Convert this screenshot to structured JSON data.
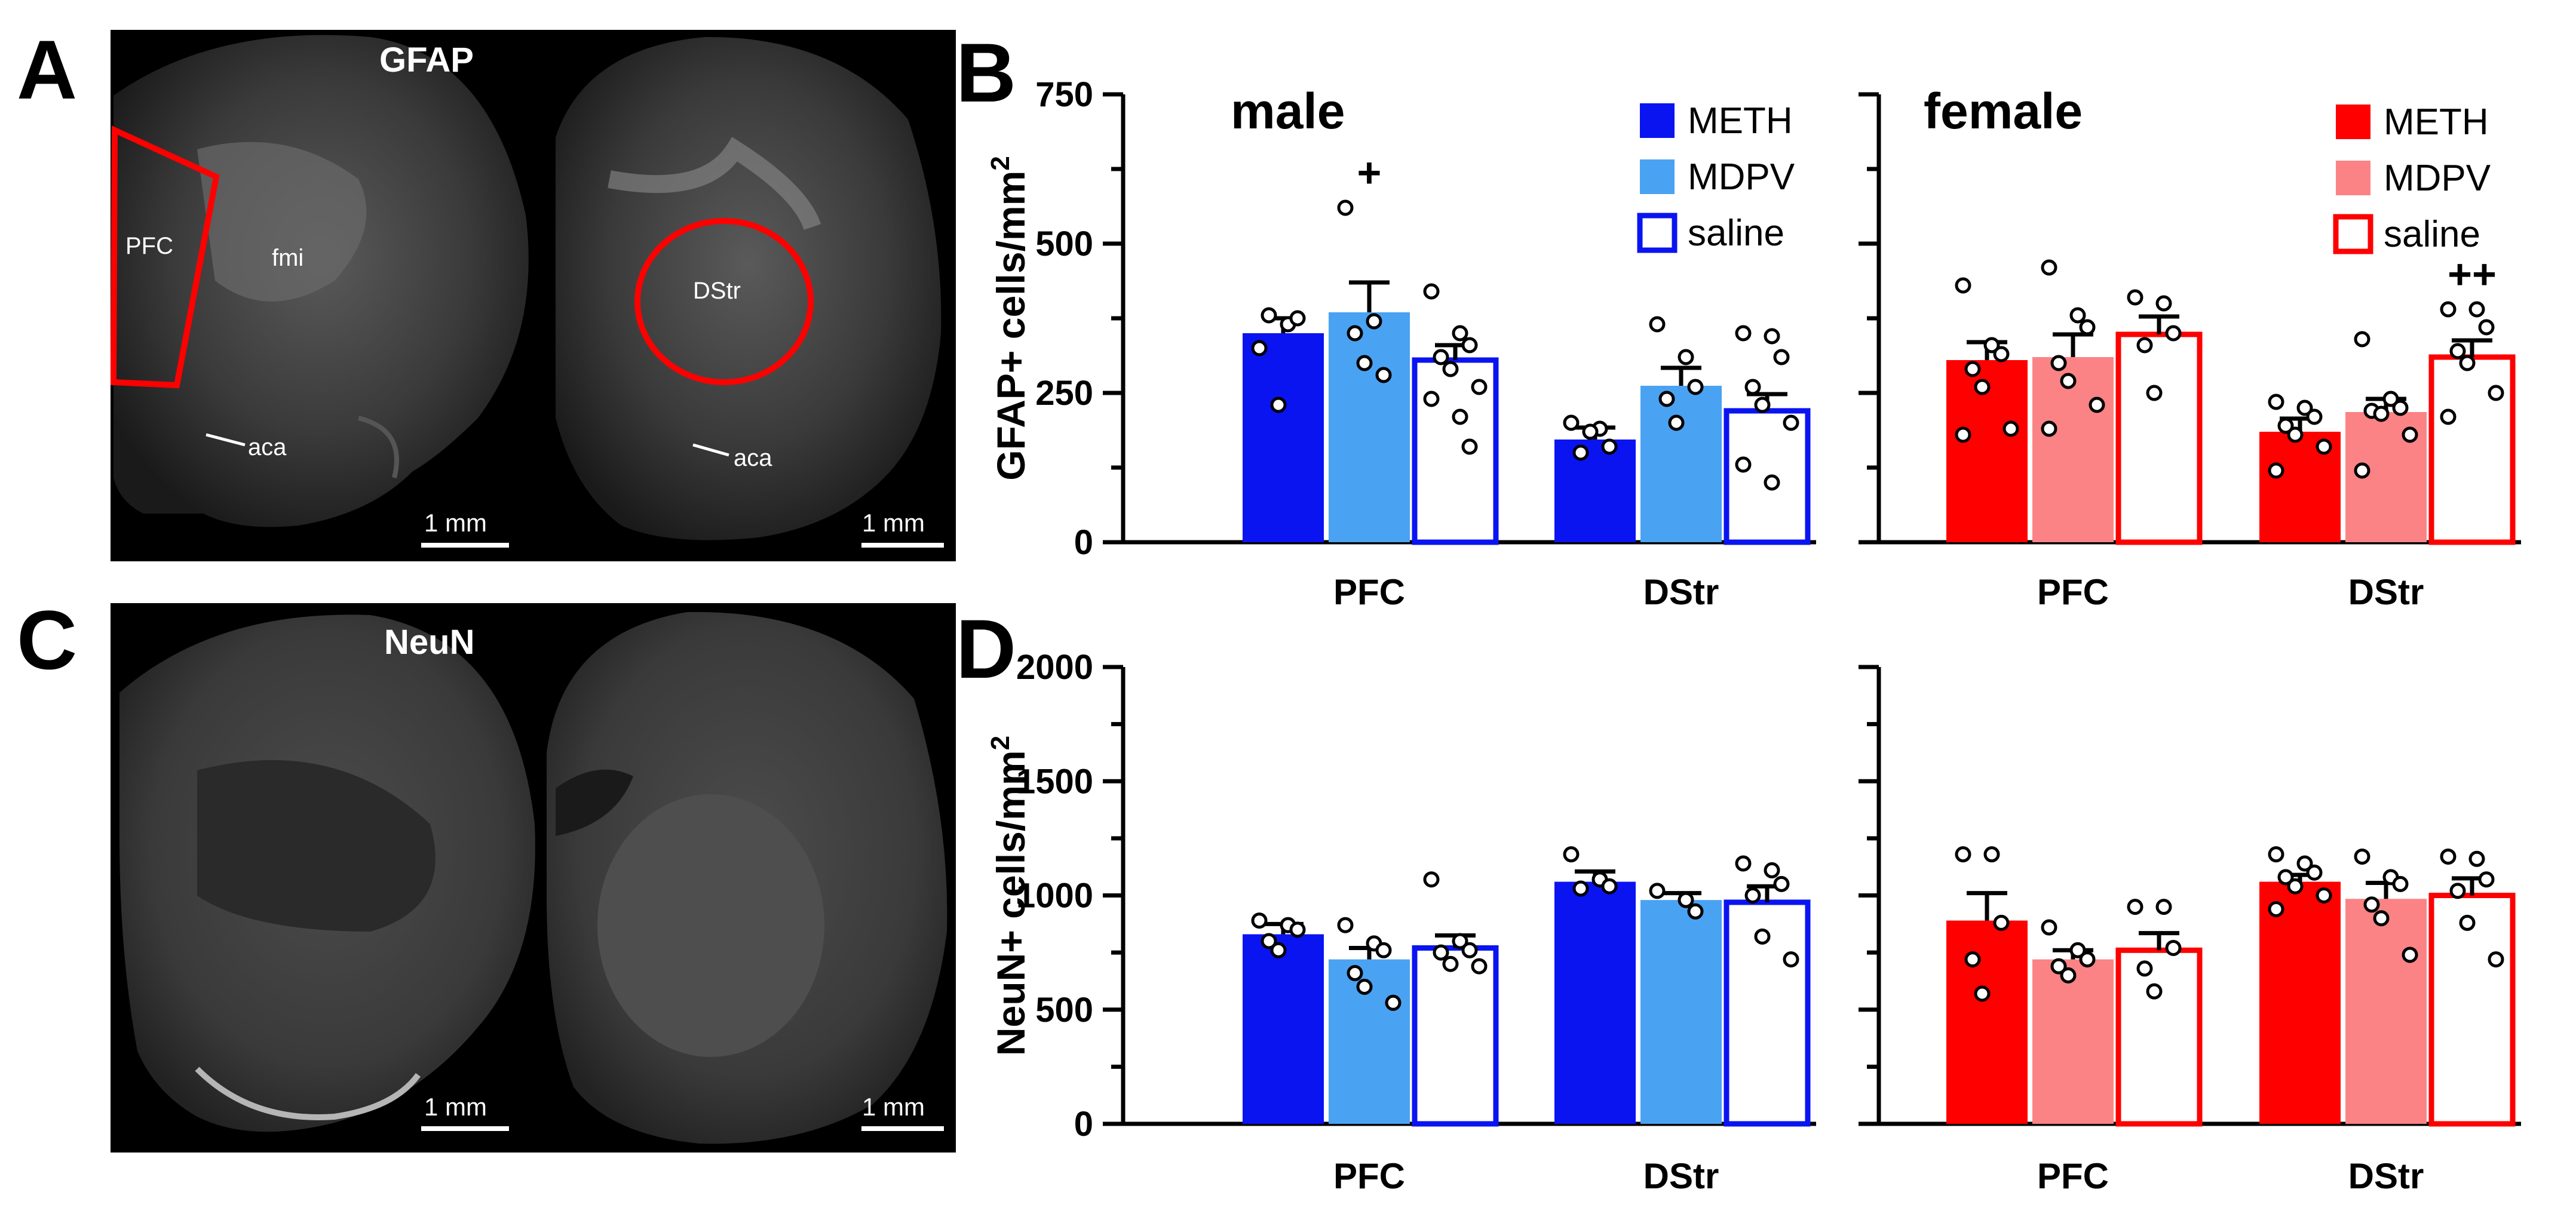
{
  "panel_letters": {
    "a": "A",
    "b": "B",
    "c": "C",
    "d": "D"
  },
  "micrographs": {
    "gfap": {
      "stain": "GFAP",
      "left_labels": {
        "region": "PFC",
        "tract": "fmi",
        "aca": "aca"
      },
      "right_labels": {
        "region": "DStr",
        "aca": "aca"
      },
      "scale": "1 mm"
    },
    "neun": {
      "stain": "NeuN",
      "scale": "1 mm"
    }
  },
  "colors": {
    "male": {
      "METH": "#0a14f0",
      "MDPV": "#4aa2f2",
      "saline": "#ffffff",
      "outline": "#0a14f0"
    },
    "female": {
      "METH": "#ff0000",
      "MDPV": "#fb8385",
      "saline": "#ffffff",
      "outline": "#ff0000"
    }
  },
  "chart_data": [
    {
      "id": "B-male",
      "type": "bar",
      "title": "male",
      "ylabel": "GFAP+ cells/mm",
      "ylabel_sup": "2",
      "ylim": [
        0,
        750
      ],
      "yticks": [
        "0",
        "250",
        "500",
        "750"
      ],
      "categories": [
        "PFC",
        "DStr"
      ],
      "legend": [
        "METH",
        "MDPV",
        "saline"
      ],
      "series": [
        {
          "name": "METH",
          "values": [
            350,
            172
          ],
          "sem": [
            25,
            20
          ],
          "points": [
            [
              325,
              365,
              375,
              380,
              230
            ],
            [
              200,
              190,
              160,
              150,
              185
            ]
          ]
        },
        {
          "name": "MDPV",
          "values": [
            385,
            262
          ],
          "sem": [
            50,
            30
          ],
          "points": [
            [
              560,
              370,
              280,
              350,
              300
            ],
            [
              365,
              310,
              260,
              240,
              200
            ]
          ]
        },
        {
          "name": "saline",
          "values": [
            305,
            220
          ],
          "sem": [
            25,
            28
          ],
          "points": [
            [
              420,
              350,
              330,
              310,
              290,
              260,
              240,
              210,
              160
            ],
            [
              350,
              345,
              310,
              260,
              230,
              200,
              130,
              100
            ]
          ]
        }
      ],
      "annotations": [
        {
          "category": "PFC",
          "series": "MDPV",
          "text": "+"
        }
      ]
    },
    {
      "id": "B-female",
      "type": "bar",
      "title": "female",
      "ylim": [
        0,
        750
      ],
      "categories": [
        "PFC",
        "DStr"
      ],
      "legend": [
        "METH",
        "MDPV",
        "saline"
      ],
      "series": [
        {
          "name": "METH",
          "values": [
            305,
            185
          ],
          "sem": [
            30,
            22
          ],
          "points": [
            [
              430,
              330,
              315,
              290,
              260,
              190,
              180
            ],
            [
              235,
              225,
              210,
              195,
              180,
              160,
              120
            ]
          ]
        },
        {
          "name": "MDPV",
          "values": [
            310,
            218
          ],
          "sem": [
            38,
            22
          ],
          "points": [
            [
              460,
              380,
              360,
              300,
              270,
              230,
              190
            ],
            [
              340,
              240,
              225,
              220,
              215,
              180,
              120
            ]
          ]
        },
        {
          "name": "saline",
          "values": [
            348,
            310
          ],
          "sem": [
            30,
            28
          ],
          "points": [
            [
              410,
              400,
              350,
              330,
              250
            ],
            [
              390,
              390,
              360,
              320,
              300,
              250,
              210
            ]
          ]
        }
      ],
      "annotations": [
        {
          "category": "DStr",
          "series": "saline",
          "text": "++"
        }
      ]
    },
    {
      "id": "D-male",
      "type": "bar",
      "ylabel": "NeuN+ cells/mm",
      "ylabel_sup": "2",
      "ylim": [
        0,
        2000
      ],
      "yticks": [
        "0",
        "500",
        "1000",
        "1500",
        "2000"
      ],
      "categories": [
        "PFC",
        "DStr"
      ],
      "series": [
        {
          "name": "METH",
          "values": [
            830,
            1060
          ],
          "sem": [
            45,
            45
          ],
          "points": [
            [
              890,
              870,
              850,
              800,
              760
            ],
            [
              1180,
              1070,
              1040,
              1030
            ]
          ]
        },
        {
          "name": "MDPV",
          "values": [
            720,
            980
          ],
          "sem": [
            50,
            30
          ],
          "points": [
            [
              870,
              790,
              760,
              660,
              600,
              530
            ],
            [
              1020,
              980,
              930
            ]
          ]
        },
        {
          "name": "saline",
          "values": [
            770,
            970
          ],
          "sem": [
            55,
            70
          ],
          "points": [
            [
              1070,
              800,
              760,
              750,
              700,
              690
            ],
            [
              1140,
              1110,
              1050,
              1000,
              820,
              720
            ]
          ]
        }
      ]
    },
    {
      "id": "D-female",
      "type": "bar",
      "ylim": [
        0,
        2000
      ],
      "categories": [
        "PFC",
        "DStr"
      ],
      "series": [
        {
          "name": "METH",
          "values": [
            890,
            1060
          ],
          "sem": [
            120,
            30
          ],
          "points": [
            [
              1180,
              1180,
              880,
              720,
              570
            ],
            [
              1180,
              1140,
              1100,
              1080,
              1040,
              1000,
              940
            ]
          ]
        },
        {
          "name": "MDPV",
          "values": [
            720,
            985
          ],
          "sem": [
            40,
            70
          ],
          "points": [
            [
              860,
              760,
              720,
              690,
              650
            ],
            [
              1170,
              1080,
              1050,
              960,
              900,
              740
            ]
          ]
        },
        {
          "name": "saline",
          "values": [
            760,
            1000
          ],
          "sem": [
            75,
            75
          ],
          "points": [
            [
              950,
              950,
              770,
              680,
              580
            ],
            [
              1170,
              1160,
              1070,
              1020,
              880,
              720
            ]
          ]
        }
      ]
    }
  ]
}
